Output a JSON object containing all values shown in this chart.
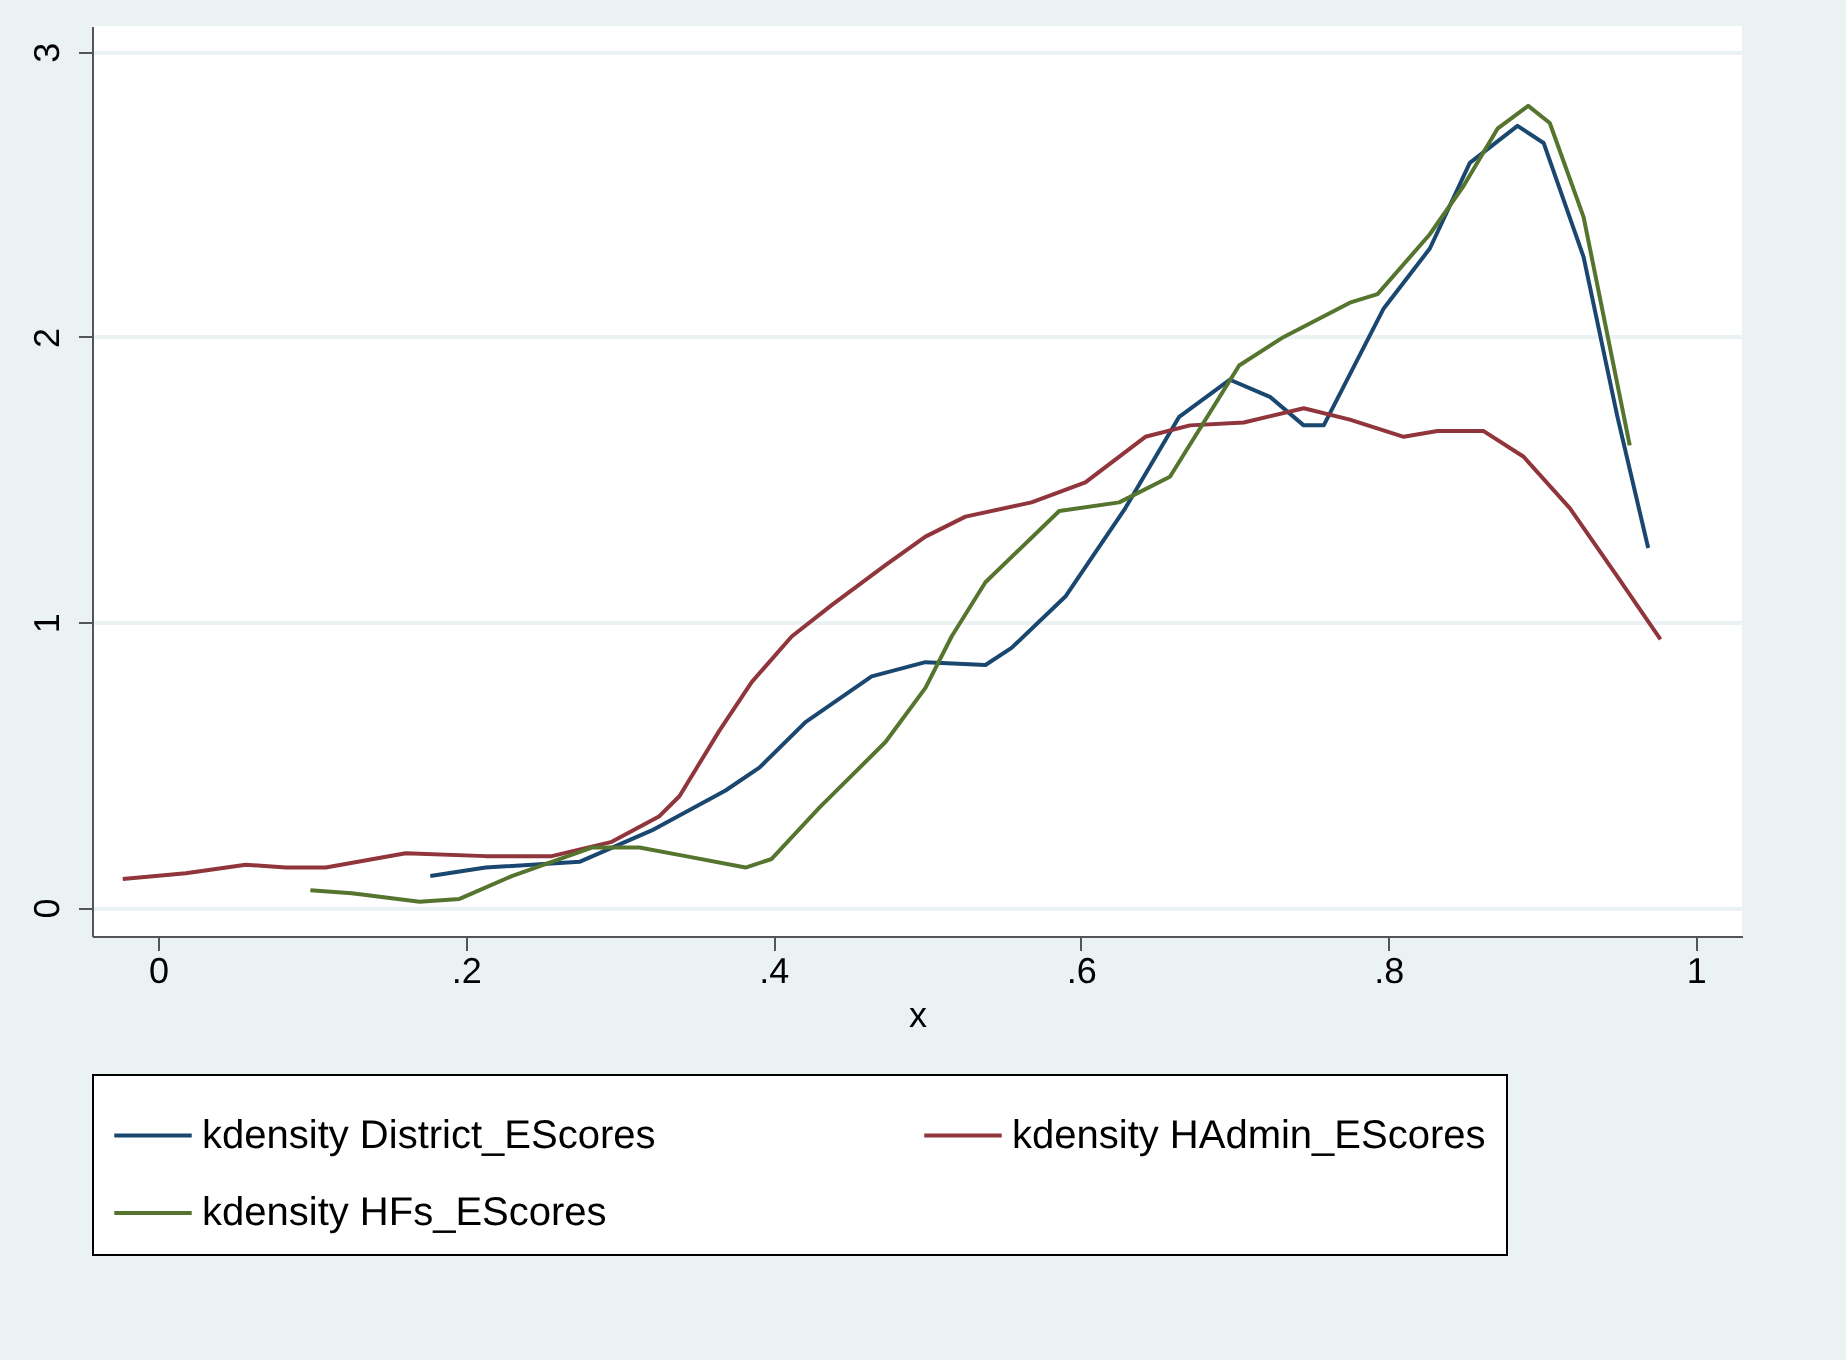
{
  "chart_data": {
    "type": "line",
    "xlabel": "x",
    "xlim": [
      -0.043,
      1.03
    ],
    "ylim": [
      -0.1,
      3.09
    ],
    "xticks": [
      0,
      {
        "value": 0.2,
        "label": ".2"
      },
      {
        "value": 0.4,
        "label": ".4"
      },
      {
        "value": 0.6,
        "label": ".6"
      },
      {
        "value": 0.8,
        "label": ".8"
      },
      1
    ],
    "yticks": [
      0,
      1,
      2,
      3
    ],
    "grid": "y",
    "legend": "bottom",
    "line_style": "solid",
    "marker": "none",
    "series": [
      {
        "name": "kdensity District_EScores",
        "color": "#1a476f",
        "x": [
          0.177,
          0.213,
          0.274,
          0.321,
          0.369,
          0.391,
          0.421,
          0.464,
          0.499,
          0.538,
          0.555,
          0.59,
          0.629,
          0.664,
          0.697,
          0.723,
          0.745,
          0.758,
          0.797,
          0.827,
          0.853,
          0.884,
          0.901,
          0.927,
          0.949,
          0.969
        ],
        "values": [
          0.11,
          0.14,
          0.16,
          0.27,
          0.41,
          0.49,
          0.65,
          0.81,
          0.86,
          0.85,
          0.91,
          1.09,
          1.4,
          1.72,
          1.85,
          1.79,
          1.69,
          1.69,
          2.1,
          2.31,
          2.61,
          2.74,
          2.68,
          2.28,
          1.72,
          1.26
        ]
      },
      {
        "name": "kdensity HAdmin_EScores",
        "color": "#90353b",
        "x": [
          -0.023,
          0.018,
          0.057,
          0.083,
          0.109,
          0.161,
          0.213,
          0.256,
          0.295,
          0.326,
          0.339,
          0.365,
          0.386,
          0.412,
          0.438,
          0.473,
          0.499,
          0.525,
          0.568,
          0.603,
          0.642,
          0.671,
          0.706,
          0.745,
          0.775,
          0.81,
          0.832,
          0.862,
          0.888,
          0.918,
          0.949,
          0.977
        ],
        "values": [
          0.1,
          0.12,
          0.15,
          0.14,
          0.14,
          0.19,
          0.18,
          0.18,
          0.23,
          0.32,
          0.39,
          0.62,
          0.79,
          0.95,
          1.06,
          1.2,
          1.3,
          1.37,
          1.42,
          1.49,
          1.65,
          1.69,
          1.7,
          1.75,
          1.71,
          1.65,
          1.67,
          1.67,
          1.58,
          1.4,
          1.16,
          0.94
        ]
      },
      {
        "name": "kdensity HFs_EScores",
        "color": "#55752f",
        "x": [
          0.099,
          0.126,
          0.17,
          0.196,
          0.23,
          0.282,
          0.313,
          0.343,
          0.382,
          0.399,
          0.43,
          0.473,
          0.499,
          0.516,
          0.538,
          0.586,
          0.625,
          0.658,
          0.703,
          0.732,
          0.775,
          0.793,
          0.827,
          0.849,
          0.871,
          0.891,
          0.905,
          0.927,
          0.957
        ],
        "values": [
          0.06,
          0.05,
          0.02,
          0.03,
          0.11,
          0.21,
          0.21,
          0.18,
          0.14,
          0.17,
          0.35,
          0.58,
          0.77,
          0.95,
          1.14,
          1.39,
          1.42,
          1.51,
          1.9,
          2.0,
          2.12,
          2.15,
          2.36,
          2.53,
          2.73,
          2.81,
          2.75,
          2.42,
          1.62
        ]
      }
    ]
  }
}
